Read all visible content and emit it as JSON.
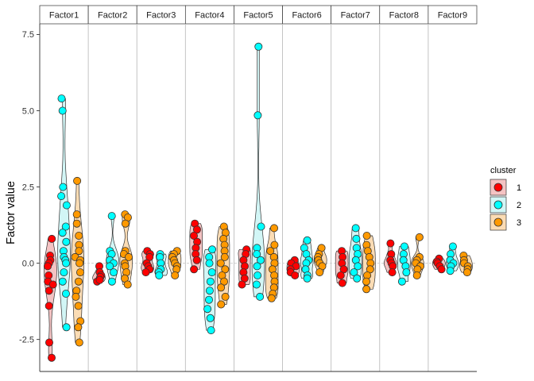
{
  "chart_data": {
    "type": "violin",
    "ylabel": "Factor value",
    "xlabel": "",
    "ylim": [
      -3.55,
      7.85
    ],
    "y_ticks": [
      -2.5,
      0.0,
      2.5,
      5.0,
      7.5
    ],
    "y_tick_labels": [
      "-2.5",
      "0.0",
      "2.5",
      "5.0",
      "7.5"
    ],
    "facets": [
      "Factor1",
      "Factor2",
      "Factor3",
      "Factor4",
      "Factor5",
      "Factor6",
      "Factor7",
      "Factor8",
      "Factor9"
    ],
    "legend": {
      "title": "cluster",
      "position": "right",
      "entries": [
        {
          "label": "1",
          "color": "#ff0000",
          "fill": "#f4c3c3"
        },
        {
          "label": "2",
          "color": "#00ffff",
          "fill": "#d2f6f6"
        },
        {
          "label": "3",
          "color": "#ff9900",
          "fill": "#fbdcb4"
        }
      ]
    },
    "series": [
      {
        "facet": "Factor1",
        "cluster": "1",
        "values": [
          0.8,
          0.25,
          0.1,
          0.0,
          -0.1,
          -0.4,
          -0.6,
          -0.7,
          -0.9,
          -1.4,
          -2.6,
          -3.1
        ]
      },
      {
        "facet": "Factor1",
        "cluster": "2",
        "values": [
          5.4,
          5.0,
          2.5,
          2.2,
          1.9,
          1.2,
          1.0,
          0.7,
          0.4,
          0.2,
          0.1,
          0.0,
          -0.3,
          -0.6,
          -1.0,
          -2.1
        ]
      },
      {
        "facet": "Factor1",
        "cluster": "3",
        "values": [
          2.7,
          1.6,
          1.3,
          0.9,
          0.6,
          0.4,
          0.2,
          0.1,
          0.0,
          -0.3,
          -0.6,
          -0.9,
          -1.1,
          -1.4,
          -1.9,
          -2.1,
          -2.6
        ]
      },
      {
        "facet": "Factor2",
        "cluster": "1",
        "values": [
          -0.1,
          -0.3,
          -0.4,
          -0.5,
          -0.6,
          -0.45,
          -0.55
        ]
      },
      {
        "facet": "Factor2",
        "cluster": "2",
        "values": [
          1.55,
          0.4,
          0.3,
          0.1,
          0.0,
          -0.1,
          -0.3,
          -0.6
        ]
      },
      {
        "facet": "Factor2",
        "cluster": "3",
        "values": [
          1.6,
          1.5,
          1.3,
          0.4,
          0.3,
          0.2,
          0.0,
          -0.1,
          -0.3,
          -0.5,
          -0.7
        ]
      },
      {
        "facet": "Factor3",
        "cluster": "1",
        "values": [
          0.4,
          0.3,
          0.2,
          0.0,
          -0.1,
          -0.2,
          -0.3
        ]
      },
      {
        "facet": "Factor3",
        "cluster": "2",
        "values": [
          0.3,
          0.2,
          0.0,
          -0.2,
          -0.3,
          -0.4
        ]
      },
      {
        "facet": "Factor3",
        "cluster": "3",
        "values": [
          0.4,
          0.3,
          0.2,
          0.1,
          0.0,
          -0.1,
          -0.2,
          -0.4
        ]
      },
      {
        "facet": "Factor4",
        "cluster": "1",
        "values": [
          1.3,
          1.1,
          0.9,
          0.7,
          0.5,
          0.3,
          0.1,
          -0.2
        ]
      },
      {
        "facet": "Factor4",
        "cluster": "2",
        "values": [
          0.45,
          0.2,
          0.0,
          -0.3,
          -0.6,
          -0.9,
          -1.2,
          -1.5,
          -1.8,
          -2.2
        ]
      },
      {
        "facet": "Factor4",
        "cluster": "3",
        "values": [
          1.2,
          1.0,
          0.8,
          0.6,
          0.4,
          0.2,
          0.0,
          -0.2,
          -0.4,
          -0.6,
          -0.8,
          -1.1,
          -1.35
        ]
      },
      {
        "facet": "Factor5",
        "cluster": "1",
        "values": [
          0.45,
          0.3,
          0.1,
          -0.1,
          -0.3,
          -0.5,
          -0.7
        ]
      },
      {
        "facet": "Factor5",
        "cluster": "2",
        "values": [
          7.1,
          4.85,
          1.2,
          0.5,
          0.3,
          0.1,
          -0.1,
          -0.4,
          -0.7,
          -1.1
        ]
      },
      {
        "facet": "Factor5",
        "cluster": "3",
        "values": [
          1.15,
          0.6,
          0.4,
          0.2,
          0.0,
          -0.2,
          -0.4,
          -0.6,
          -0.8,
          -1.0,
          -1.15
        ]
      },
      {
        "facet": "Factor6",
        "cluster": "1",
        "values": [
          0.1,
          0.0,
          -0.1,
          -0.2,
          -0.3,
          -0.4
        ]
      },
      {
        "facet": "Factor6",
        "cluster": "2",
        "values": [
          0.75,
          0.5,
          0.3,
          0.1,
          0.0,
          -0.2,
          -0.4,
          -0.5
        ]
      },
      {
        "facet": "Factor6",
        "cluster": "3",
        "values": [
          0.5,
          0.3,
          0.2,
          0.1,
          0.0,
          -0.1,
          -0.3
        ]
      },
      {
        "facet": "Factor7",
        "cluster": "1",
        "values": [
          0.4,
          0.2,
          0.0,
          -0.2,
          -0.4,
          -0.65
        ]
      },
      {
        "facet": "Factor7",
        "cluster": "2",
        "values": [
          1.15,
          0.8,
          0.5,
          0.3,
          0.1,
          -0.1,
          -0.3,
          -0.5
        ]
      },
      {
        "facet": "Factor7",
        "cluster": "3",
        "values": [
          0.9,
          0.6,
          0.4,
          0.2,
          0.0,
          -0.2,
          -0.4,
          -0.6,
          -0.85
        ]
      },
      {
        "facet": "Factor8",
        "cluster": "1",
        "values": [
          0.65,
          0.3,
          0.1,
          0.0,
          -0.1,
          -0.3
        ]
      },
      {
        "facet": "Factor8",
        "cluster": "2",
        "values": [
          0.55,
          0.3,
          0.1,
          -0.1,
          -0.3,
          -0.6
        ]
      },
      {
        "facet": "Factor8",
        "cluster": "3",
        "values": [
          0.85,
          0.2,
          0.1,
          0.0,
          -0.1,
          -0.2,
          -0.4
        ]
      },
      {
        "facet": "Factor9",
        "cluster": "1",
        "values": [
          0.15,
          0.05,
          0.0,
          -0.1,
          -0.2
        ]
      },
      {
        "facet": "Factor9",
        "cluster": "2",
        "values": [
          0.55,
          0.3,
          0.1,
          0.0,
          -0.1,
          -0.25
        ]
      },
      {
        "facet": "Factor9",
        "cluster": "3",
        "values": [
          0.25,
          0.1,
          0.0,
          -0.1,
          -0.2,
          -0.3
        ]
      }
    ]
  }
}
